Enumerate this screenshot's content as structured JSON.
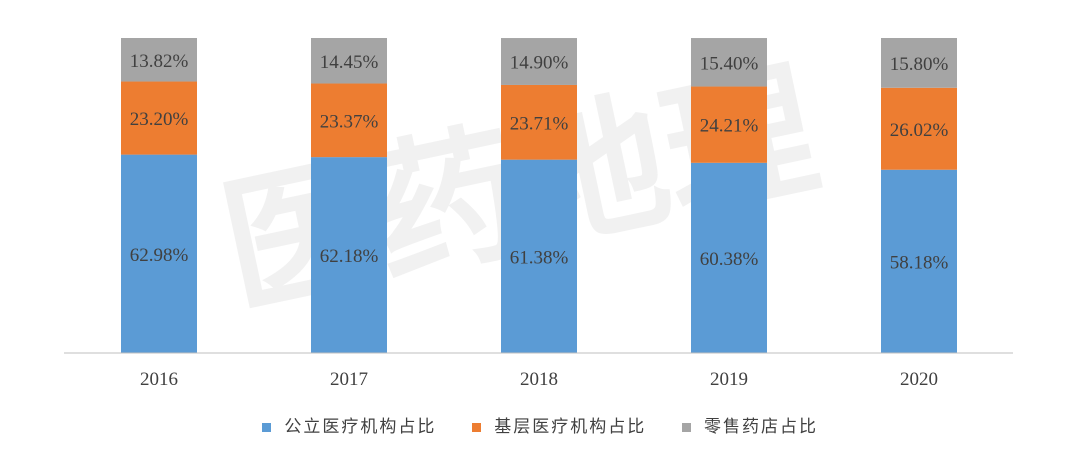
{
  "chart_data": {
    "type": "bar",
    "stacked": true,
    "categories": [
      "2016",
      "2017",
      "2018",
      "2019",
      "2020"
    ],
    "series": [
      {
        "name": "公立医疗机构占比",
        "color": "#5b9bd5",
        "values": [
          62.98,
          62.18,
          61.38,
          60.38,
          58.18
        ],
        "labels": [
          "62.98%",
          "62.18%",
          "61.38%",
          "60.38%",
          "58.18%"
        ]
      },
      {
        "name": "基层医疗机构占比",
        "color": "#ed7d31",
        "values": [
          23.2,
          23.37,
          23.71,
          24.21,
          26.02
        ],
        "labels": [
          "23.20%",
          "23.37%",
          "23.71%",
          "24.21%",
          "26.02%"
        ]
      },
      {
        "name": "零售药店占比",
        "color": "#a5a5a5",
        "values": [
          13.82,
          14.45,
          14.9,
          15.4,
          15.8
        ],
        "labels": [
          "13.82%",
          "14.45%",
          "14.90%",
          "15.40%",
          "15.80%"
        ]
      }
    ],
    "ylim": [
      0,
      100
    ],
    "grid": false,
    "legend_position": "bottom",
    "watermark": "医药地理"
  }
}
